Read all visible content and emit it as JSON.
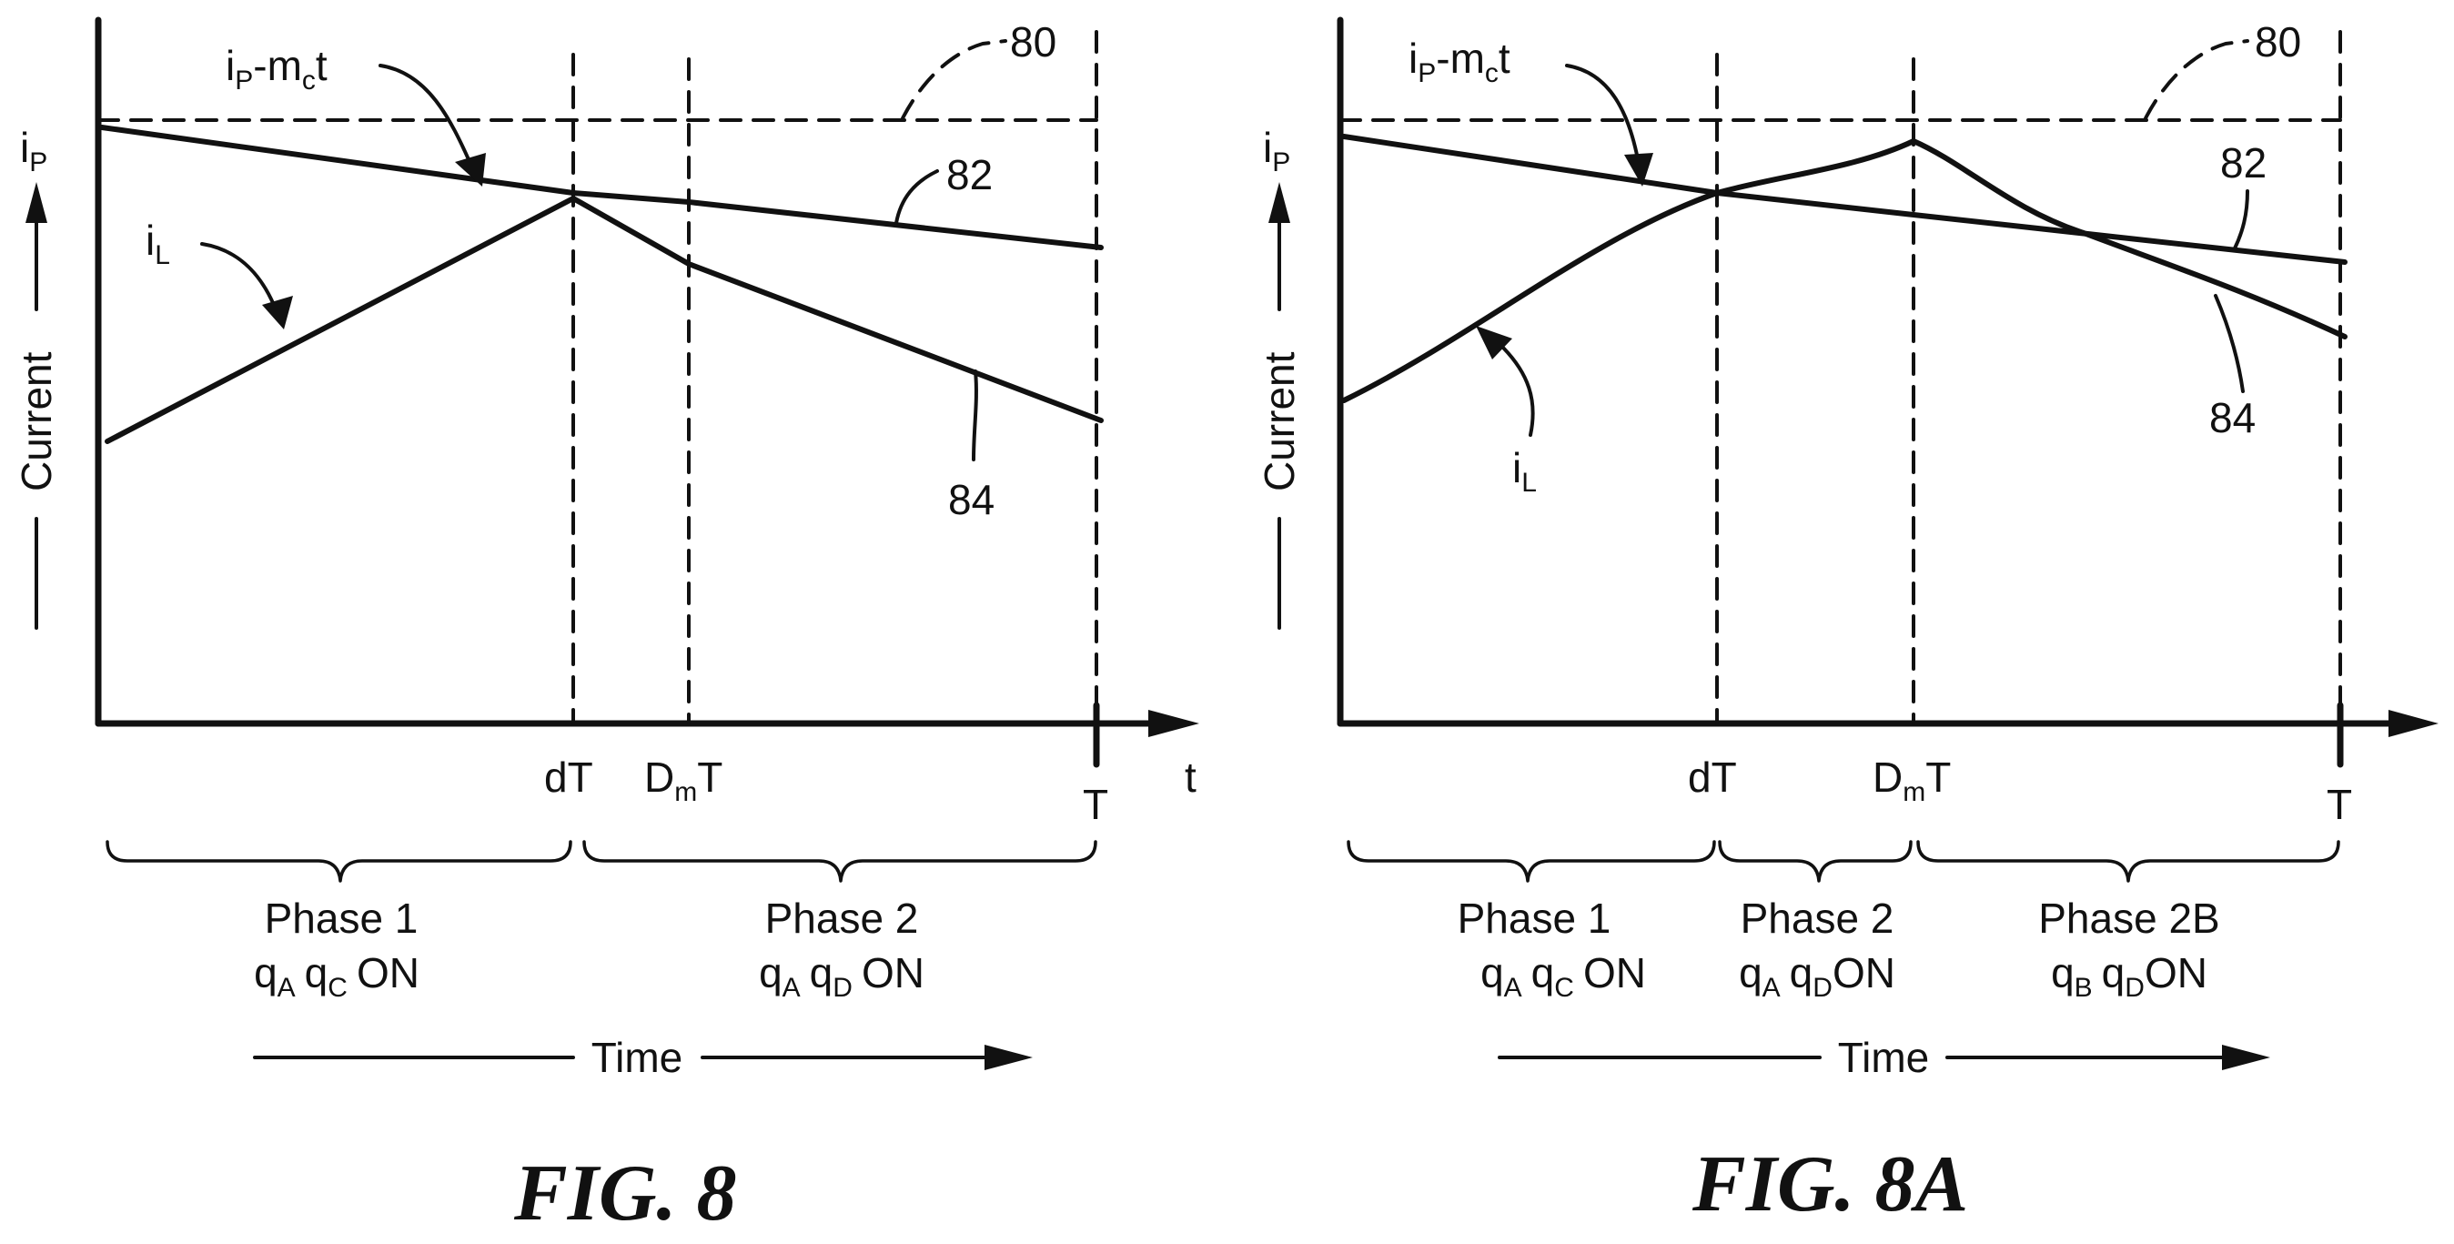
{
  "figures": [
    {
      "caption": "FIG. 8",
      "y_axis_label": "Current",
      "y_axis_symbol": "i",
      "y_axis_symbol_sub": "P",
      "x_axis_end_label": "t",
      "ticks": {
        "dT": "dT",
        "DmT_main": "D",
        "DmT_sub": "m",
        "DmT_tail": "T",
        "T": "T"
      },
      "labels": {
        "ip_mct_main": "i",
        "ip_mct_sub": "P",
        "ip_mct_rest": "-m",
        "ip_mct_sub2": "c",
        "ip_mct_t": "t",
        "ref_80": "80",
        "ref_82": "82",
        "ref_84": "84",
        "iL_main": "i",
        "iL_sub": "L"
      },
      "phases": [
        {
          "name": "Phase 1",
          "q1": "q",
          "q1_sub": "A",
          "q2": "q",
          "q2_sub": "C",
          "state": "ON"
        },
        {
          "name": "Phase 2",
          "q1": "q",
          "q1_sub": "A",
          "q2": "q",
          "q2_sub": "D",
          "state": "ON"
        }
      ],
      "time_label": "Time"
    },
    {
      "caption": "FIG. 8A",
      "y_axis_label": "Current",
      "y_axis_symbol": "i",
      "y_axis_symbol_sub": "P",
      "ticks": {
        "dT": "dT",
        "DmT_main": "D",
        "DmT_sub": "m",
        "DmT_tail": "T",
        "T": "T"
      },
      "labels": {
        "ip_mct_main": "i",
        "ip_mct_sub": "P",
        "ip_mct_rest": "-m",
        "ip_mct_sub2": "c",
        "ip_mct_t": "t",
        "ref_80": "80",
        "ref_82": "82",
        "ref_84": "84",
        "iL_main": "i",
        "iL_sub": "L"
      },
      "phases": [
        {
          "name": "Phase 1",
          "q1": "q",
          "q1_sub": "A",
          "q2": "q",
          "q2_sub": "C",
          "state": "ON"
        },
        {
          "name": "Phase 2",
          "q1": "q",
          "q1_sub": "A",
          "q2": "q",
          "q2_sub": "D",
          "state": "ON"
        },
        {
          "name": "Phase 2B",
          "q1": "q",
          "q1_sub": "B",
          "q2": "q",
          "q2_sub": "D",
          "state": "ON"
        }
      ],
      "time_label": "Time"
    }
  ]
}
